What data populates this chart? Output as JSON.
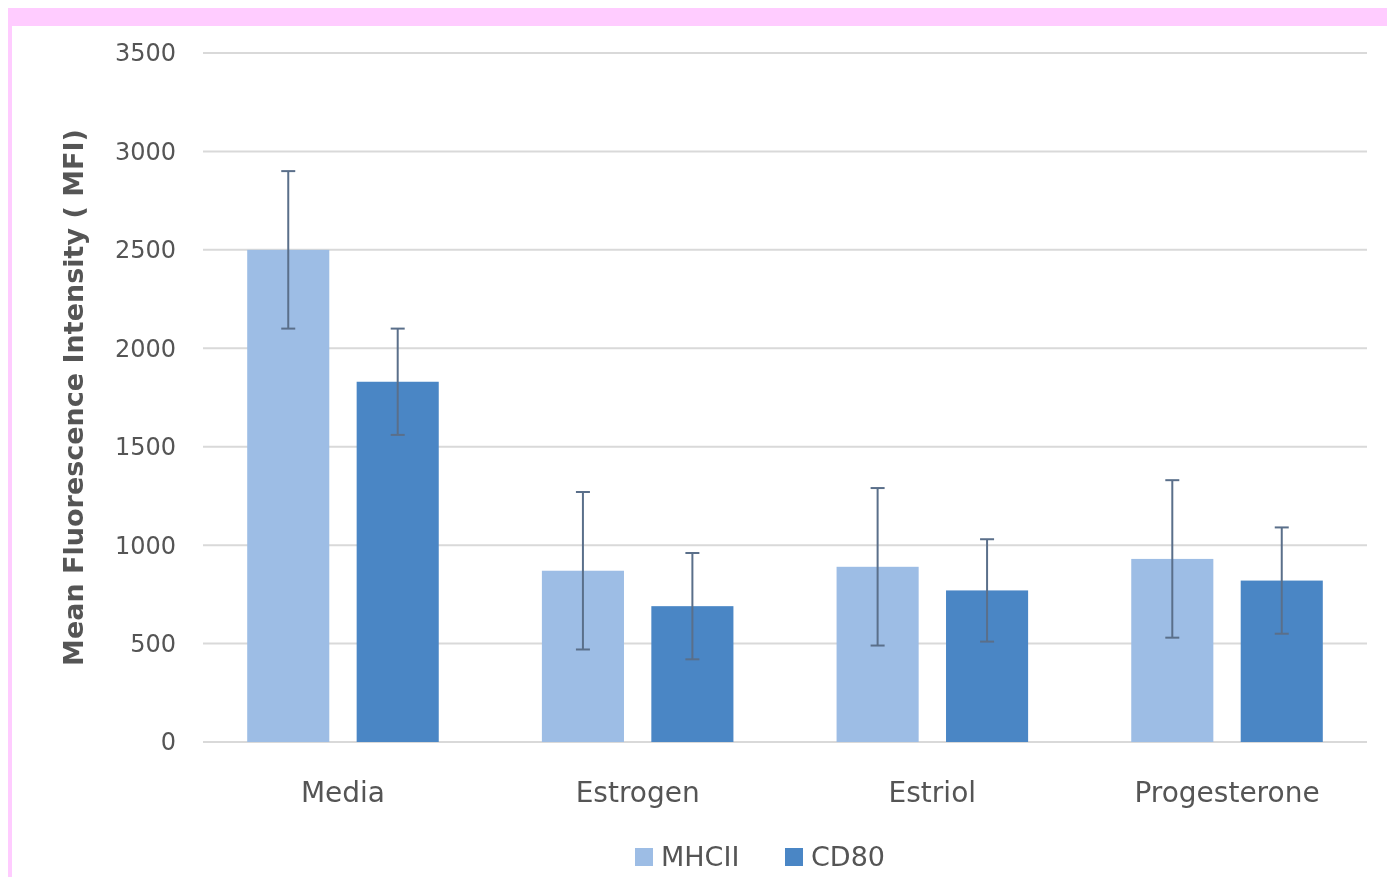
{
  "chart_data": {
    "type": "bar",
    "ylabel": "Mean Fluorescence Intensity ( MFI)",
    "categories": [
      "Media",
      "Estrogen",
      "Estriol",
      "Progesterone"
    ],
    "series": [
      {
        "name": "MHCII",
        "color": "#9dbde5",
        "values": [
          2500,
          870,
          890,
          930
        ],
        "errors": [
          400,
          400,
          400,
          400
        ]
      },
      {
        "name": "CD80",
        "color": "#4a86c5",
        "values": [
          1830,
          690,
          770,
          820
        ],
        "errors": [
          270,
          270,
          260,
          270
        ]
      }
    ],
    "ylim": [
      0,
      3500
    ],
    "yticks": [
      0,
      500,
      1000,
      1500,
      2000,
      2500,
      3000,
      3500
    ],
    "grid": "y",
    "legend": "bottom"
  }
}
